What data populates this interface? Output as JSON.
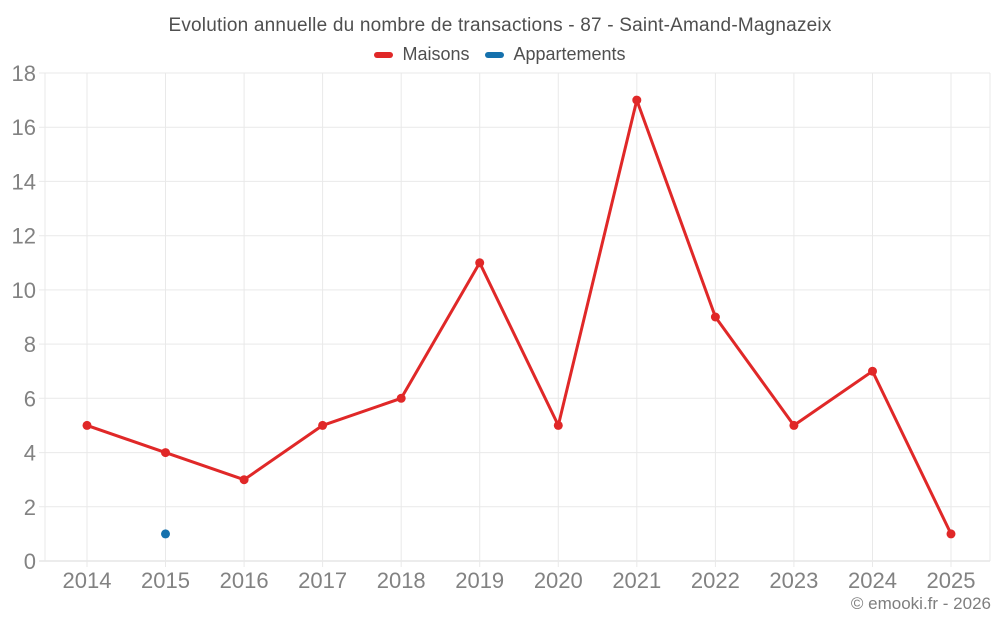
{
  "chart": {
    "title": "Evolution annuelle du nombre de transactions - 87 - Saint-Amand-Magnazeix",
    "footer": "© emooki.fr - 2026"
  },
  "chart_data": {
    "type": "line",
    "title": "Evolution annuelle du nombre de transactions - 87 - Saint-Amand-Magnazeix",
    "categories": [
      "2014",
      "2015",
      "2016",
      "2017",
      "2018",
      "2019",
      "2020",
      "2021",
      "2022",
      "2023",
      "2024",
      "2025"
    ],
    "series": [
      {
        "name": "Maisons",
        "color": "#e02828",
        "values": [
          5,
          4,
          3,
          5,
          6,
          11,
          5,
          17,
          9,
          5,
          7,
          1
        ]
      },
      {
        "name": "Appartements",
        "color": "#1571ad",
        "values": [
          null,
          1,
          null,
          null,
          null,
          null,
          null,
          null,
          null,
          null,
          null,
          null
        ]
      }
    ],
    "xlabel": "",
    "ylabel": "",
    "ylim": [
      0,
      18
    ],
    "ytick_step": 2,
    "grid": true,
    "legend_position": "top",
    "colors": {
      "grid": "#e9e9e9",
      "axis_baseline": "#d9d9d9",
      "tick_text": "#828282"
    }
  }
}
